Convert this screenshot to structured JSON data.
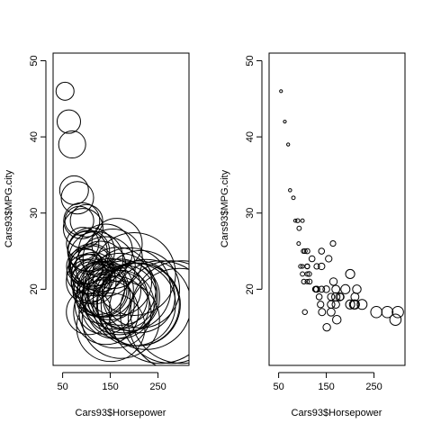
{
  "chart_data": [
    {
      "type": "scatter",
      "xlabel": "Cars93$Horsepower",
      "ylabel": "Cars93$MPG.city",
      "xticks": [
        50,
        150,
        250
      ],
      "yticks": [
        20,
        30,
        40,
        50
      ],
      "xlim": [
        30,
        315
      ],
      "ylim": [
        10,
        51
      ],
      "marker": "circle, size scaled by engine size (large)",
      "series": [
        {
          "x": [
            55,
            63,
            70,
            74,
            81,
            85,
            90,
            92,
            93,
            96,
            100,
            100,
            100,
            102,
            103,
            105,
            105,
            110,
            110,
            110,
            110,
            110,
            114,
            115,
            120,
            127,
            128,
            130,
            130,
            135,
            138,
            140,
            140,
            140,
            141,
            150,
            151,
            155,
            160,
            160,
            160,
            164,
            165,
            170,
            170,
            170,
            172,
            178,
            180,
            190,
            200,
            200,
            208,
            210,
            210,
            214,
            225,
            255,
            278,
            295,
            300
          ],
          "y": [
            46,
            42,
            39,
            33,
            32,
            29,
            29,
            26,
            28,
            23,
            22,
            23,
            29,
            25,
            21,
            25,
            17,
            22,
            23,
            23,
            21,
            25,
            22,
            21,
            24,
            20,
            20,
            23,
            20,
            19,
            18,
            25,
            20,
            23,
            17,
            20,
            15,
            24,
            18,
            19,
            17,
            26,
            21,
            19,
            18,
            20,
            16,
            19,
            19,
            20,
            18,
            22,
            18,
            19,
            18,
            20,
            18,
            17,
            17,
            16,
            17
          ],
          "size": [
            1.0,
            1.3,
            1.5,
            1.6,
            1.8,
            1.6,
            2.0,
            1.8,
            2.2,
            2.0,
            2.2,
            1.9,
            1.8,
            2.2,
            2.4,
            2.3,
            2.5,
            2.2,
            2.5,
            2.3,
            2.2,
            2.6,
            2.4,
            2.5,
            3.0,
            2.8,
            3.0,
            2.8,
            3.1,
            3.0,
            3.3,
            3.0,
            3.1,
            3.3,
            3.6,
            3.4,
            3.8,
            3.3,
            3.8,
            3.6,
            4.0,
            2.8,
            3.8,
            4.2,
            3.8,
            4.0,
            4.3,
            4.0,
            3.5,
            4.6,
            4.6,
            4.6,
            4.6,
            4.0,
            4.6,
            4.3,
            5.0,
            5.7,
            5.7,
            5.7,
            5.7
          ]
        }
      ]
    },
    {
      "type": "scatter",
      "xlabel": "Cars93$Horsepower",
      "ylabel": "Cars93$MPG.city",
      "xticks": [
        50,
        150,
        250
      ],
      "yticks": [
        20,
        30,
        40,
        50
      ],
      "xlim": [
        30,
        315
      ],
      "ylim": [
        10,
        51
      ],
      "marker": "circle, size scaled by engine size (small)",
      "series": [
        {
          "x": [
            55,
            63,
            70,
            74,
            81,
            85,
            90,
            92,
            93,
            96,
            100,
            100,
            100,
            102,
            103,
            105,
            105,
            110,
            110,
            110,
            110,
            110,
            114,
            115,
            120,
            127,
            128,
            130,
            130,
            135,
            138,
            140,
            140,
            140,
            141,
            150,
            151,
            155,
            160,
            160,
            160,
            164,
            165,
            170,
            170,
            170,
            172,
            178,
            180,
            190,
            200,
            200,
            208,
            210,
            210,
            214,
            225,
            255,
            278,
            295,
            300
          ],
          "y": [
            46,
            42,
            39,
            33,
            32,
            29,
            29,
            26,
            28,
            23,
            22,
            23,
            29,
            25,
            21,
            25,
            17,
            22,
            23,
            23,
            21,
            25,
            22,
            21,
            24,
            20,
            20,
            23,
            20,
            19,
            18,
            25,
            20,
            23,
            17,
            20,
            15,
            24,
            18,
            19,
            17,
            26,
            21,
            19,
            18,
            20,
            16,
            19,
            19,
            20,
            18,
            22,
            18,
            19,
            18,
            20,
            18,
            17,
            17,
            16,
            17
          ],
          "size": [
            1.0,
            1.3,
            1.5,
            1.6,
            1.8,
            1.6,
            2.0,
            1.8,
            2.2,
            2.0,
            2.2,
            1.9,
            1.8,
            2.2,
            2.4,
            2.3,
            2.5,
            2.2,
            2.5,
            2.3,
            2.2,
            2.6,
            2.4,
            2.5,
            3.0,
            2.8,
            3.0,
            2.8,
            3.1,
            3.0,
            3.3,
            3.0,
            3.1,
            3.3,
            3.6,
            3.4,
            3.8,
            3.3,
            3.8,
            3.6,
            4.0,
            2.8,
            3.8,
            4.2,
            3.8,
            4.0,
            4.3,
            4.0,
            3.5,
            4.6,
            4.6,
            4.6,
            4.6,
            4.0,
            4.6,
            4.3,
            5.0,
            5.7,
            5.7,
            5.7,
            5.7
          ]
        }
      ]
    }
  ]
}
